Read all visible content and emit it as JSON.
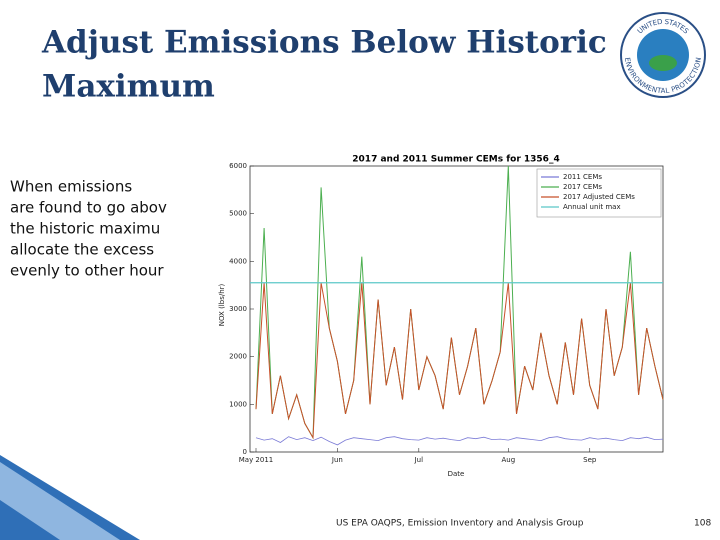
{
  "header": {
    "title_lines": [
      "Adjust Emissions Below Historic",
      "Maximum"
    ]
  },
  "logo": {
    "top": "UNITED STATES",
    "bottom": "ENVIRONMENTAL PROTECTION"
  },
  "body": {
    "lines": [
      "When emissions",
      "are found to go abov",
      "the historic maximu",
      "allocate the excess",
      "evenly to other hour"
    ]
  },
  "footer": {
    "text": "US EPA OAQPS, Emission Inventory and Analysis Group",
    "page": "108"
  },
  "chart_data": {
    "type": "line",
    "title": "2017 and 2011 Summer CEMs for 1356_4",
    "x_label": "Date",
    "y_label": "NOX (lbs/hr)",
    "categories": [
      "May 2011",
      null,
      null,
      null,
      null,
      null,
      null,
      null,
      null,
      null,
      "Jun",
      null,
      null,
      null,
      null,
      null,
      null,
      null,
      null,
      null,
      "Jul",
      null,
      null,
      null,
      null,
      null,
      null,
      null,
      null,
      null,
      null,
      "Aug",
      null,
      null,
      null,
      null,
      null,
      null,
      null,
      null,
      null,
      "Sep",
      null,
      null,
      null,
      null,
      null,
      null,
      null,
      null,
      null
    ],
    "ylim": [
      0,
      6000
    ],
    "yticks": [
      0,
      1000,
      2000,
      3000,
      4000,
      5000,
      6000
    ],
    "grid": false,
    "legend": "upper right",
    "series": [
      {
        "name": "2011 CEMs",
        "color": "#7b7bd6",
        "values": [
          300,
          250,
          280,
          200,
          320,
          260,
          300,
          240,
          310,
          220,
          150,
          250,
          300,
          280,
          260,
          240,
          300,
          320,
          280,
          260,
          250,
          300,
          270,
          290,
          260,
          240,
          300,
          280,
          310,
          260,
          270,
          250,
          300,
          280,
          260,
          240,
          300,
          320,
          280,
          260,
          250,
          300,
          270,
          290,
          260,
          240,
          300,
          280,
          310,
          260,
          270
        ]
      },
      {
        "name": "2017 CEMs",
        "color": "#4caf50",
        "values": [
          900,
          4700,
          800,
          1600,
          700,
          1200,
          600,
          300,
          5550,
          2600,
          1900,
          800,
          1500,
          4100,
          1000,
          3200,
          1400,
          2200,
          1100,
          3000,
          1300,
          2000,
          1600,
          900,
          2400,
          1200,
          1800,
          2600,
          1000,
          1500,
          2100,
          6000,
          800,
          1800,
          1300,
          2500,
          1600,
          1000,
          2300,
          1200,
          2800,
          1400,
          900,
          3000,
          1600,
          2200,
          4200,
          1200,
          2600,
          1800,
          1100
        ]
      },
      {
        "name": "2017 Adjusted CEMs",
        "color": "#c8502a",
        "values": [
          900,
          3550,
          800,
          1600,
          700,
          1200,
          600,
          300,
          3550,
          2600,
          1900,
          800,
          1500,
          3550,
          1000,
          3200,
          1400,
          2200,
          1100,
          3000,
          1300,
          2000,
          1600,
          900,
          2400,
          1200,
          1800,
          2600,
          1000,
          1500,
          2100,
          3550,
          800,
          1800,
          1300,
          2500,
          1600,
          1000,
          2300,
          1200,
          2800,
          1400,
          900,
          3000,
          1600,
          2200,
          3550,
          1200,
          2600,
          1800,
          1100
        ]
      }
    ],
    "reference_lines": [
      {
        "name": "Annual unit max",
        "color": "#5bc8c8",
        "value": 3550
      }
    ]
  }
}
